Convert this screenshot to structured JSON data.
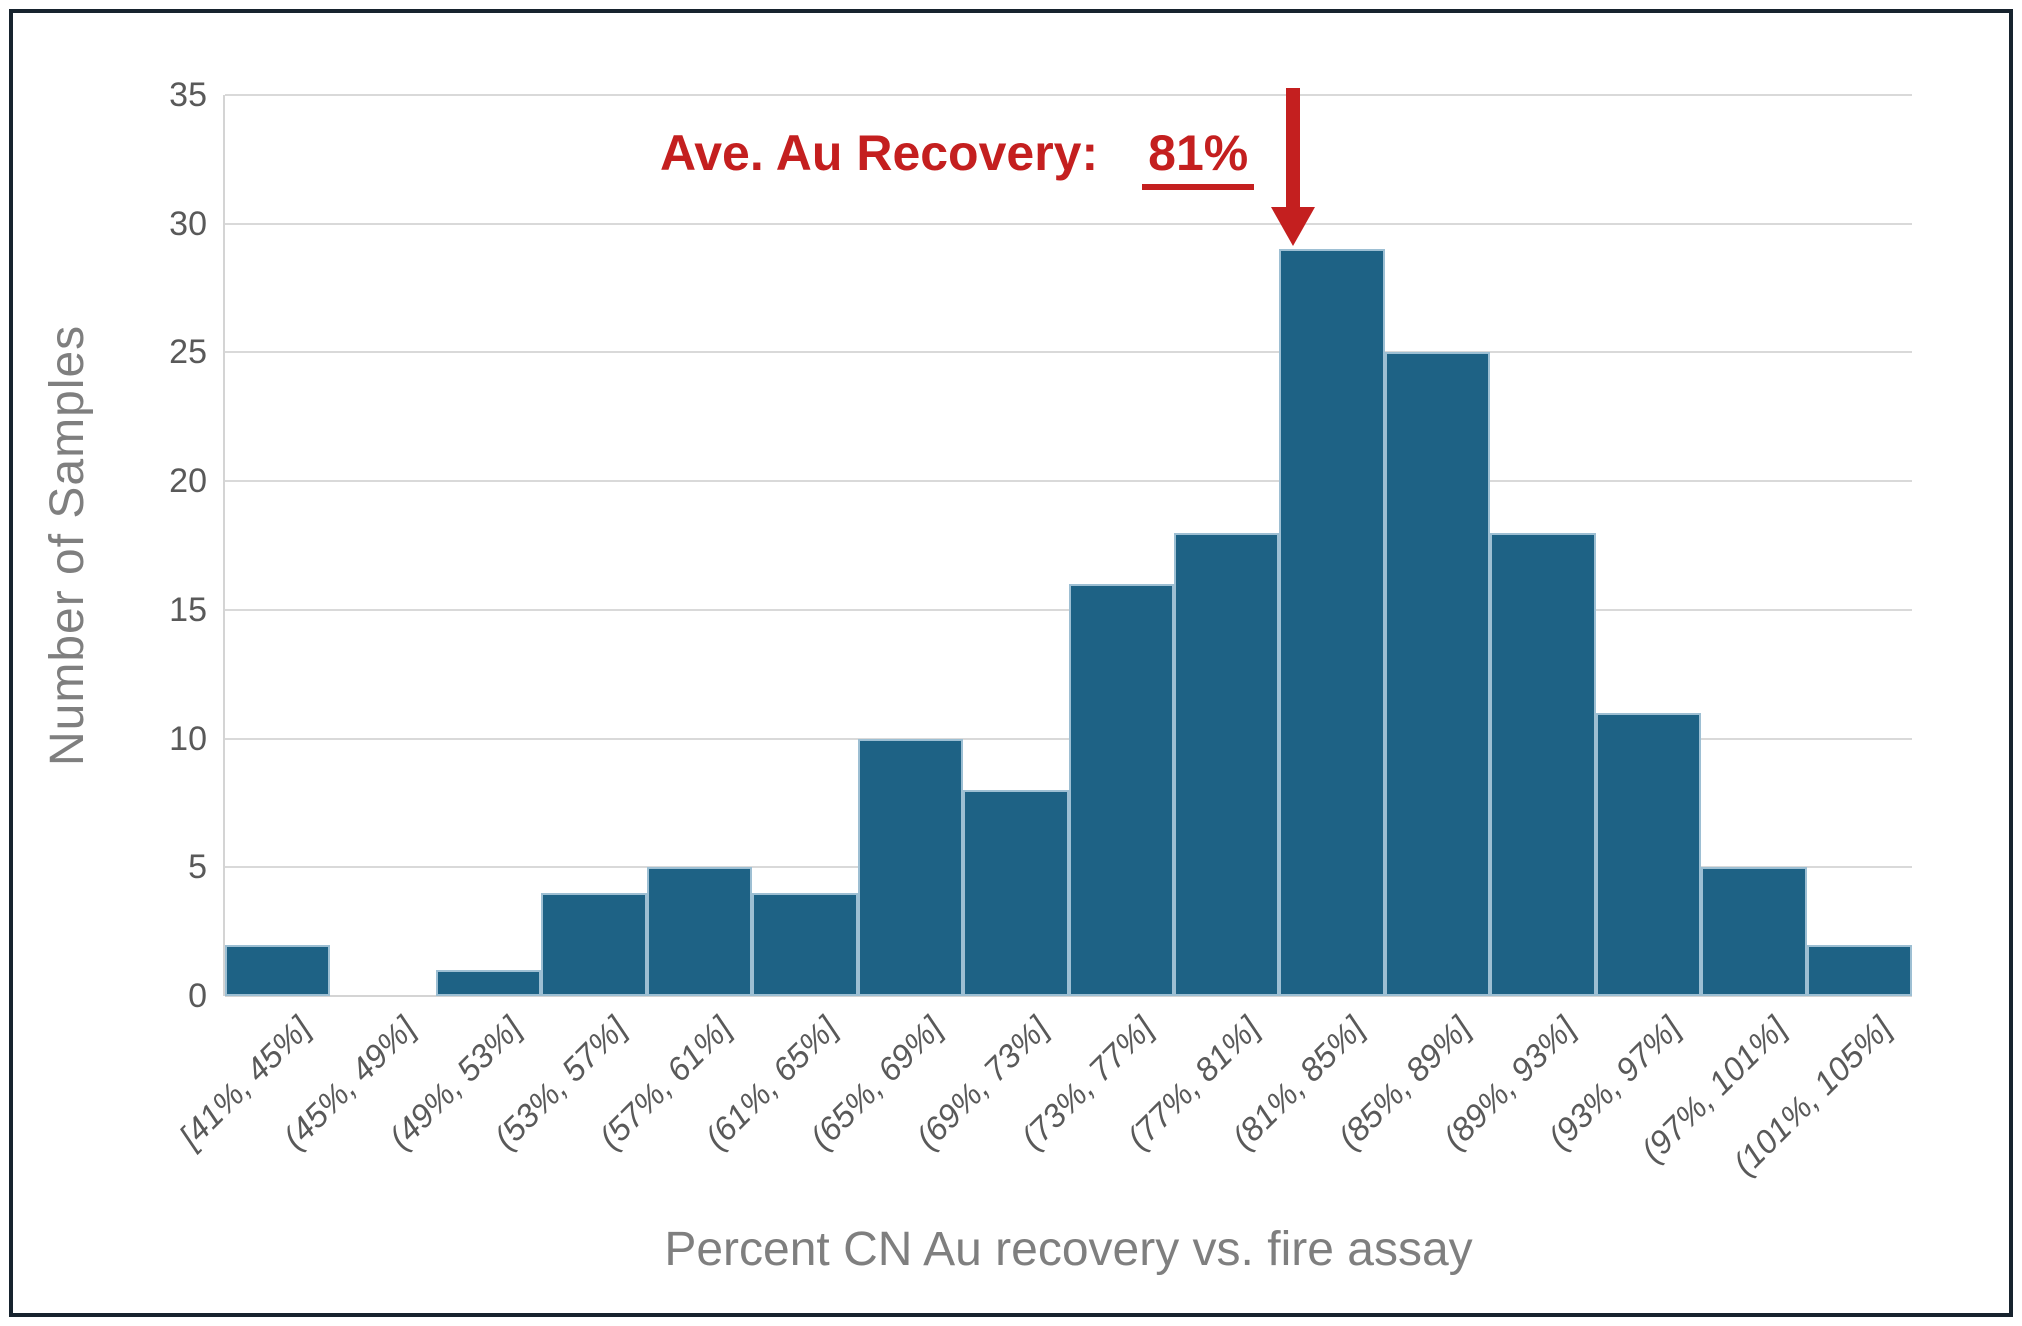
{
  "chart_data": {
    "type": "bar",
    "title": "",
    "categories": [
      "[41%, 45%]",
      "(45%, 49%]",
      "(49%, 53%]",
      "(53%, 57%]",
      "(57%, 61%]",
      "(61%, 65%]",
      "(65%, 69%]",
      "(69%, 73%]",
      "(73%, 77%]",
      "(77%, 81%]",
      "(81%, 85%]",
      "(85%, 89%]",
      "(89%, 93%]",
      "(93%, 97%]",
      "(97%, 101%]",
      "(101%, 105%]"
    ],
    "values": [
      2,
      0,
      1,
      4,
      5,
      4,
      10,
      8,
      16,
      18,
      29,
      25,
      18,
      11,
      5,
      2
    ],
    "xlabel": "Percent CN Au recovery vs. fire assay",
    "ylabel": "Number of Samples",
    "ylim": [
      0,
      35
    ],
    "ytick_step": 5,
    "grid": "horizontal",
    "legend_position": "none"
  },
  "annotation": {
    "label": "Ave. Au Recovery:",
    "value": "81%",
    "arrow_target_category": "(81%, 85%]"
  },
  "colors": {
    "bar_fill": "#1E6285",
    "bar_stroke": "#9DBFD3",
    "gridline": "#D9D9D9",
    "axis_line": "#D4D4D4",
    "tick_text": "#595959",
    "axis_title_text": "#7F7F7F",
    "annotation_red": "#C41F1F",
    "frame_border": "#17232E"
  }
}
